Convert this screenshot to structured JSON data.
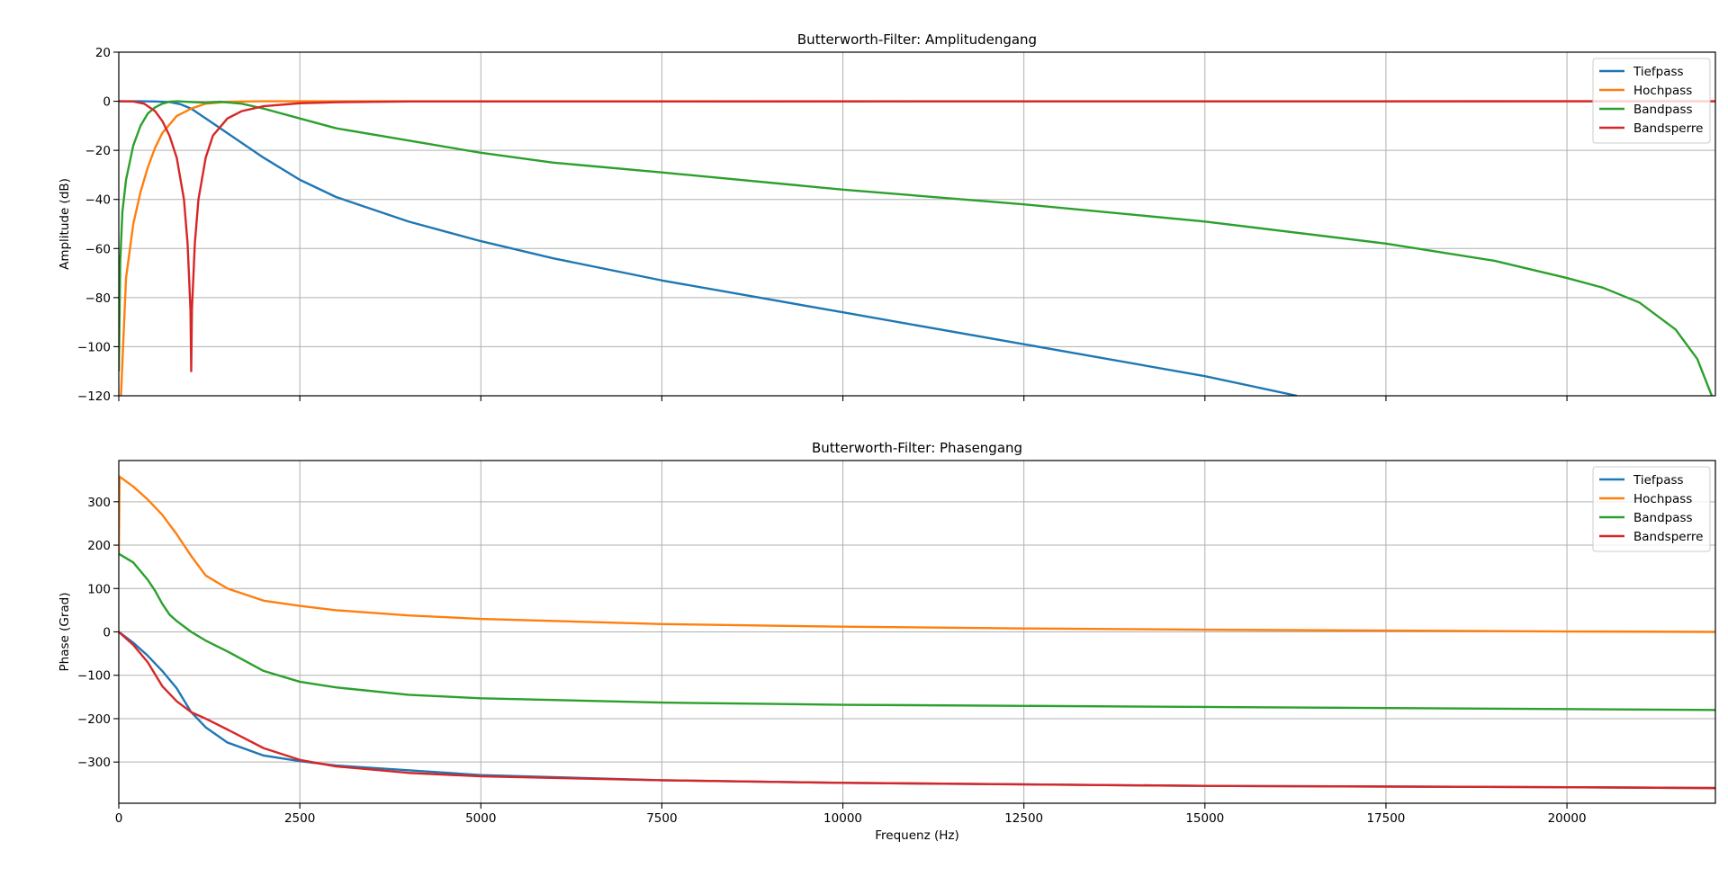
{
  "chart_data": [
    {
      "type": "line",
      "title": "Butterworth-Filter: Amplitudengang",
      "xlabel": "",
      "ylabel": "Amplitude (dB)",
      "xlim": [
        0,
        22050
      ],
      "ylim": [
        -120,
        20
      ],
      "xticks": [
        0,
        2500,
        5000,
        7500,
        10000,
        12500,
        15000,
        17500,
        20000
      ],
      "yticks": [
        20,
        0,
        -20,
        -40,
        -60,
        -80,
        -100,
        -120
      ],
      "xtick_labels_visible": false,
      "grid": true,
      "legend": "top-right",
      "series": [
        {
          "name": "Tiefpass",
          "color": "#1f77b4",
          "x": [
            0,
            300,
            500,
            700,
            850,
            1000,
            1200,
            1500,
            2000,
            2500,
            3000,
            4000,
            5000,
            6000,
            7500,
            10000,
            12500,
            15000,
            16270
          ],
          "y": [
            0,
            0,
            -0.1,
            -0.3,
            -1.2,
            -3,
            -7,
            -13,
            -23,
            -32,
            -39,
            -49,
            -57,
            -64,
            -73,
            -86,
            -99,
            -112,
            -120
          ]
        },
        {
          "name": "Hochpass",
          "color": "#ff7f0e",
          "x": [
            30,
            100,
            200,
            300,
            400,
            500,
            600,
            800,
            1000,
            1200,
            1500,
            2000,
            22050
          ],
          "y": [
            -120,
            -72,
            -50,
            -37,
            -27,
            -19,
            -13,
            -6,
            -3,
            -1,
            -0.2,
            0,
            0
          ]
        },
        {
          "name": "Bandpass",
          "color": "#2ca02c",
          "x": [
            0,
            20,
            50,
            100,
            200,
            300,
            400,
            500,
            600,
            700,
            800,
            1000,
            1200,
            1400,
            1700,
            2000,
            2500,
            3000,
            4000,
            5000,
            6000,
            7500,
            10000,
            12500,
            15000,
            17500,
            19000,
            20000,
            20500,
            21000,
            21500,
            21800,
            22000
          ],
          "y": [
            -110,
            -65,
            -45,
            -32,
            -18,
            -10,
            -5,
            -2.5,
            -1,
            -0.2,
            0,
            -0.3,
            -0.6,
            -0.2,
            -1,
            -3,
            -7,
            -11,
            -16,
            -21,
            -25,
            -29,
            -36,
            -42,
            -49,
            -58,
            -65,
            -72,
            -76,
            -82,
            -93,
            -105,
            -120
          ]
        },
        {
          "name": "Bandsperre",
          "color": "#d62728",
          "x": [
            0,
            200,
            350,
            500,
            600,
            700,
            800,
            900,
            950,
            990,
            1000,
            1010,
            1050,
            1100,
            1200,
            1300,
            1500,
            1700,
            2000,
            2500,
            3000,
            4000,
            22050
          ],
          "y": [
            0,
            -0.1,
            -1,
            -4,
            -8,
            -14,
            -23,
            -40,
            -58,
            -85,
            -110,
            -85,
            -58,
            -40,
            -23,
            -14,
            -7,
            -4,
            -2,
            -0.8,
            -0.4,
            -0.1,
            0
          ]
        }
      ]
    },
    {
      "type": "line",
      "title": "Butterworth-Filter: Phasengang",
      "xlabel": "Frequenz (Hz)",
      "ylabel": "Phase (Grad)",
      "xlim": [
        0,
        22050
      ],
      "ylim": [
        -395,
        395
      ],
      "xticks": [
        0,
        2500,
        5000,
        7500,
        10000,
        12500,
        15000,
        17500,
        20000
      ],
      "yticks": [
        300,
        200,
        100,
        0,
        -100,
        -200,
        -300
      ],
      "xtick_labels_visible": true,
      "grid": true,
      "legend": "top-right",
      "series": [
        {
          "name": "Tiefpass",
          "color": "#1f77b4",
          "x": [
            0,
            200,
            400,
            600,
            800,
            1000,
            1200,
            1500,
            2000,
            2500,
            3000,
            5000,
            7500,
            10000,
            15000,
            20000,
            22050
          ],
          "y": [
            0,
            -25,
            -55,
            -90,
            -130,
            -185,
            -220,
            -255,
            -285,
            -298,
            -308,
            -330,
            -342,
            -348,
            -355,
            -358,
            -360
          ]
        },
        {
          "name": "Hochpass",
          "color": "#ff7f0e",
          "x": [
            0,
            10,
            200,
            400,
            600,
            800,
            1000,
            1200,
            1500,
            2000,
            2500,
            3000,
            4000,
            5000,
            7500,
            10000,
            12500,
            15000,
            20000,
            22050
          ],
          "y": [
            180,
            358,
            335,
            305,
            270,
            225,
            175,
            130,
            100,
            72,
            60,
            50,
            38,
            30,
            18,
            12,
            8,
            5,
            1,
            0
          ]
        },
        {
          "name": "Bandpass",
          "color": "#2ca02c",
          "x": [
            0,
            200,
            400,
            500,
            600,
            700,
            800,
            1000,
            1200,
            1500,
            2000,
            2500,
            3000,
            4000,
            5000,
            7500,
            10000,
            15000,
            20000,
            22050
          ],
          "y": [
            180,
            160,
            120,
            95,
            65,
            40,
            25,
            0,
            -20,
            -45,
            -90,
            -115,
            -128,
            -145,
            -153,
            -163,
            -168,
            -173,
            -178,
            -180
          ]
        },
        {
          "name": "Bandsperre",
          "color": "#d62728",
          "x": [
            0,
            200,
            400,
            600,
            800,
            1000,
            1200,
            1500,
            2000,
            2500,
            3000,
            4000,
            5000,
            7500,
            10000,
            15000,
            20000,
            22050
          ],
          "y": [
            0,
            -30,
            -70,
            -125,
            -160,
            -185,
            -200,
            -225,
            -268,
            -295,
            -310,
            -325,
            -333,
            -342,
            -348,
            -355,
            -358,
            -360
          ]
        }
      ]
    }
  ]
}
